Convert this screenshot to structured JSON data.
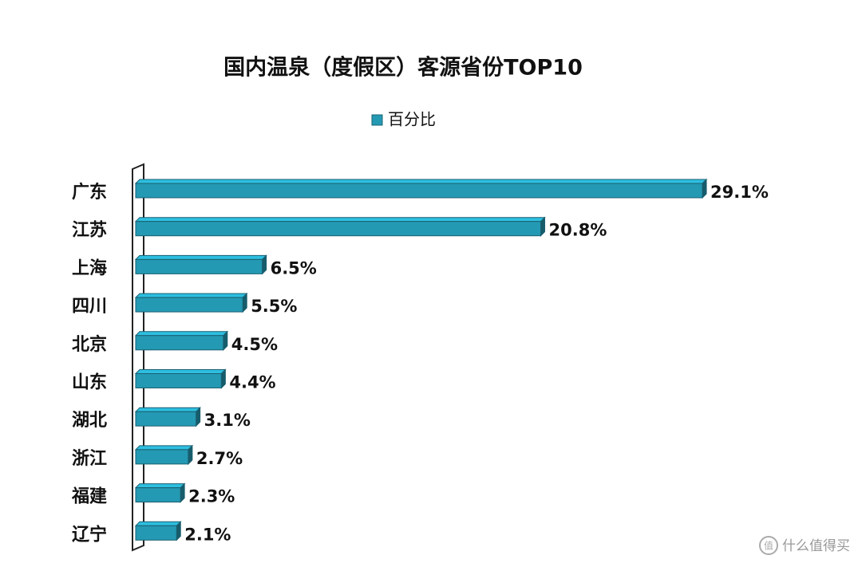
{
  "chart_data": {
    "type": "bar",
    "orientation": "horizontal",
    "title": "国内温泉（度假区）客源省份TOP10",
    "categories": [
      "广东",
      "江苏",
      "上海",
      "四川",
      "北京",
      "山东",
      "湖北",
      "浙江",
      "福建",
      "辽宁"
    ],
    "series": [
      {
        "name": "百分比",
        "color": "#2499b3",
        "values": [
          29.1,
          20.8,
          6.5,
          5.5,
          4.5,
          4.4,
          3.1,
          2.7,
          2.3,
          2.1
        ],
        "value_labels": [
          "29.1%",
          "20.8%",
          "6.5%",
          "5.5%",
          "4.5%",
          "4.4%",
          "3.1%",
          "2.7%",
          "2.3%",
          "2.1%"
        ]
      }
    ],
    "legend": "top"
  },
  "watermark": "什么值得买"
}
